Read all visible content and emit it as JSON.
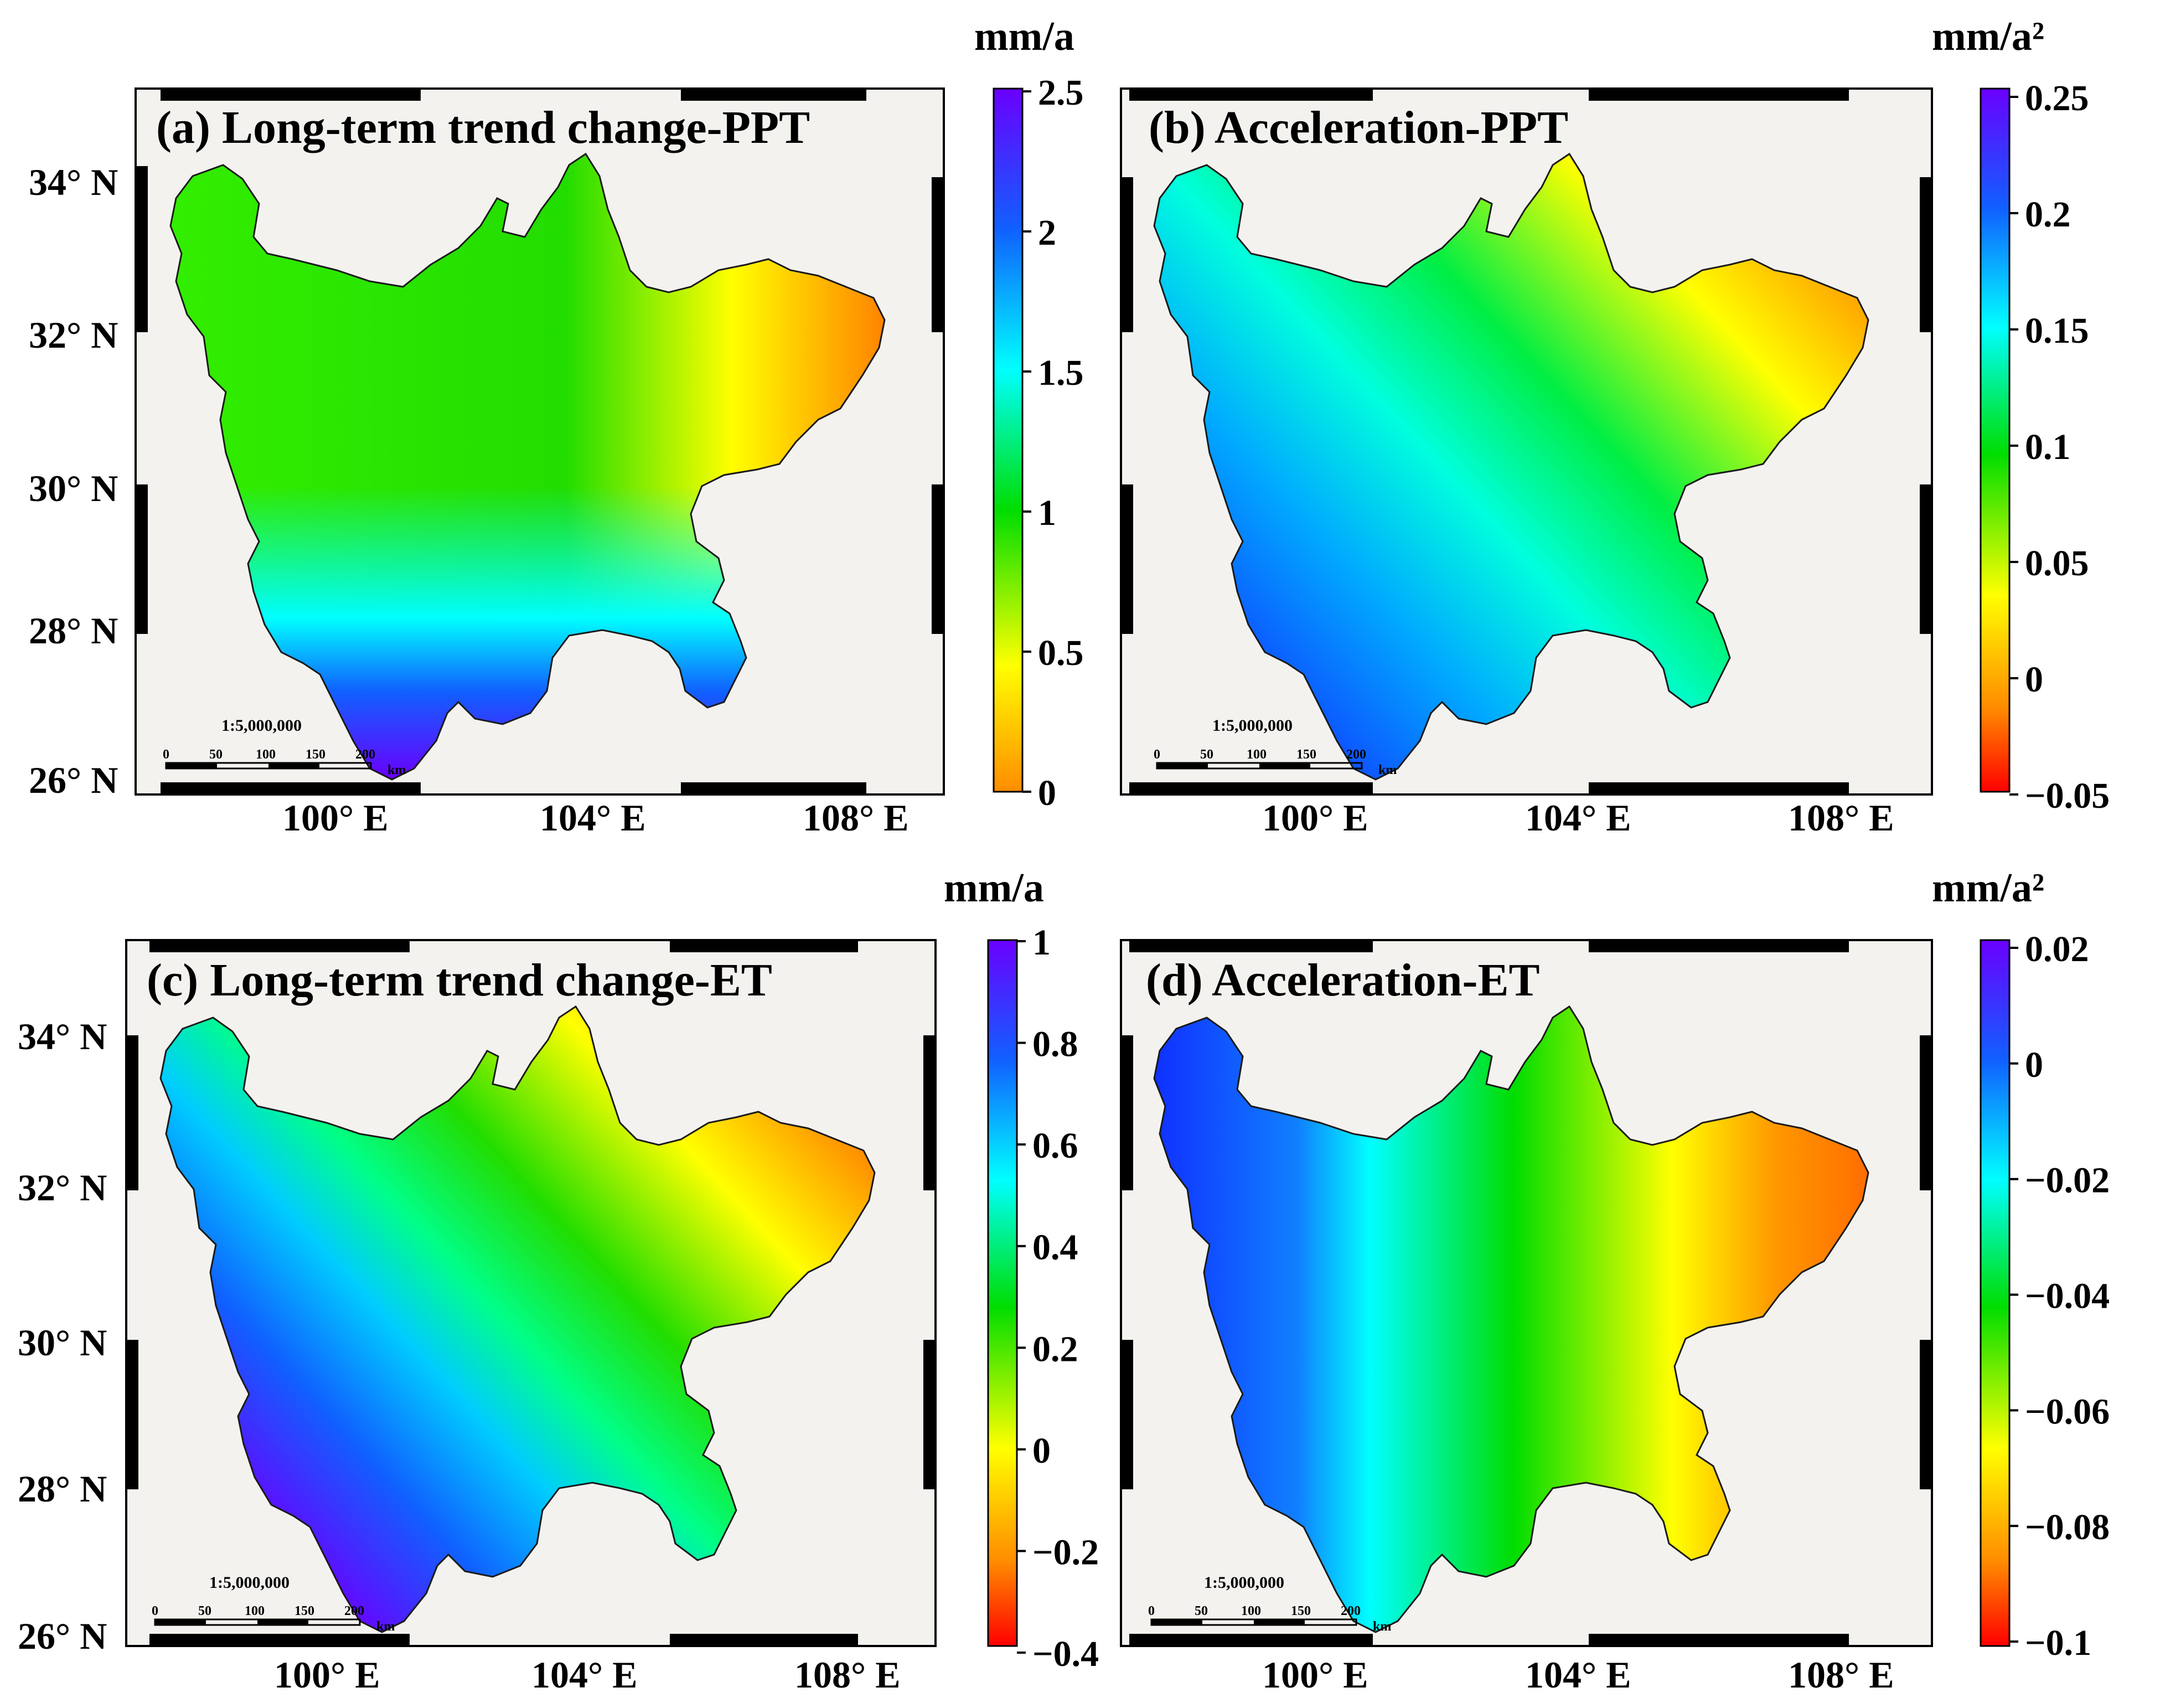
{
  "figure": {
    "panels": [
      {
        "id": "a",
        "title": "(a) Long-term trend change-PPT",
        "unit": "mm/a",
        "colorbar_ticks": [
          "2.5",
          "2",
          "1.5",
          "1",
          "0.5",
          "0"
        ],
        "colorbar_range": [
          0,
          2.5
        ],
        "lat_ticks": [
          "34° N",
          "32° N",
          "30° N",
          "28° N",
          "26° N"
        ],
        "lon_ticks": [
          "100° E",
          "104° E",
          "108° E"
        ],
        "scale_text": "1:5,000,000",
        "scale_ticks": [
          "0",
          "50",
          "100",
          "150",
          "200"
        ],
        "scale_unit": "km"
      },
      {
        "id": "b",
        "title": "(b) Acceleration-PPT",
        "unit": "mm/a²",
        "colorbar_ticks": [
          "0.25",
          "0.2",
          "0.15",
          "0.1",
          "0.05",
          "0",
          "−0.05"
        ],
        "colorbar_range": [
          -0.05,
          0.25
        ],
        "lat_ticks": [],
        "lon_ticks": [
          "100° E",
          "104° E",
          "108° E"
        ],
        "scale_text": "1:5,000,000",
        "scale_ticks": [
          "0",
          "50",
          "100",
          "150",
          "200"
        ],
        "scale_unit": "km"
      },
      {
        "id": "c",
        "title": "(c) Long-term trend change-ET",
        "unit": "mm/a",
        "colorbar_ticks": [
          "1",
          "0.8",
          "0.6",
          "0.4",
          "0.2",
          "0",
          "−0.2",
          "−0.4"
        ],
        "colorbar_range": [
          -0.4,
          1
        ],
        "lat_ticks": [
          "34° N",
          "32° N",
          "30° N",
          "28° N",
          "26° N"
        ],
        "lon_ticks": [
          "100° E",
          "104° E",
          "108° E"
        ],
        "scale_text": "1:5,000,000",
        "scale_ticks": [
          "0",
          "50",
          "100",
          "150",
          "200"
        ],
        "scale_unit": "km"
      },
      {
        "id": "d",
        "title": "(d) Acceleration-ET",
        "unit": "mm/a²",
        "colorbar_ticks": [
          "0.02",
          "0",
          "−0.02",
          "−0.04",
          "−0.06",
          "−0.08",
          "−0.1"
        ],
        "colorbar_range": [
          -0.1,
          0.02
        ],
        "lat_ticks": [],
        "lon_ticks": [
          "100° E",
          "104° E",
          "108° E"
        ],
        "scale_text": "1:5,000,000",
        "scale_ticks": [
          "0",
          "50",
          "100",
          "150",
          "200"
        ],
        "scale_unit": "km"
      }
    ],
    "colormap": {
      "name": "rainbow",
      "stops": [
        "#ff0000",
        "#ff8c00",
        "#ffff00",
        "#00dd00",
        "#00ffff",
        "#1060ff",
        "#6a00ff"
      ]
    },
    "colors": {
      "map_background": "#f3f2ef",
      "frame": "#000000",
      "outline": "#1a1a1a"
    }
  }
}
